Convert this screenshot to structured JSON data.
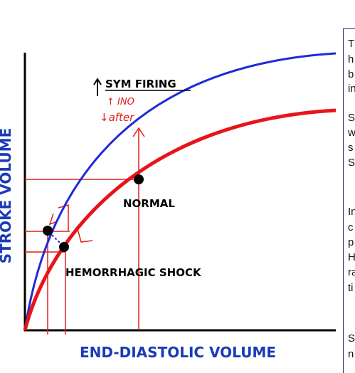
{
  "axes": {
    "y_label": "STROKE VOLUME",
    "x_label": "END-DIASTOLIC VOLUME"
  },
  "annotations": {
    "sym_firing": "SYM FIRING",
    "inotropy": "↑ INO",
    "afterload": "↓after",
    "normal": "NORMAL",
    "shock": "HEMORRHAGIC SHOCK"
  },
  "side_text": {
    "paragraphs": [
      [
        "T",
        "h",
        "b",
        "in"
      ],
      [
        "S",
        "w",
        "s",
        "S"
      ],
      [
        "In",
        "c",
        "p",
        "H",
        "ra",
        "ti"
      ],
      [
        "S",
        "n"
      ]
    ]
  }
}
